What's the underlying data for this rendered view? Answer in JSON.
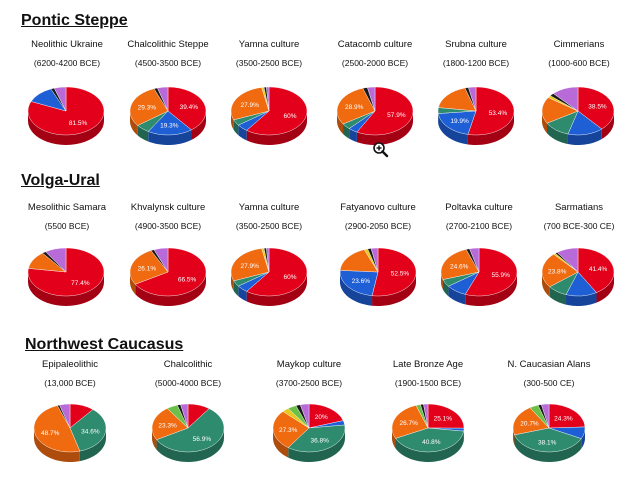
{
  "colors": {
    "red": "#e2001a",
    "blue": "#1f5fd6",
    "green": "#2e8b6e",
    "orange": "#f06a10",
    "violet": "#b86ad8",
    "yellow": "#e8c81a",
    "black": "#1a1a1a",
    "lightgreen": "#6cc04a"
  },
  "sections": [
    {
      "title": "Pontic Steppe",
      "charts": [
        {
          "name": "Neolithic Ukraine",
          "date": "(6200-4200 BCE)"
        },
        {
          "name": "Chalcolithic Steppe",
          "date": "(4500-3500 BCE)"
        },
        {
          "name": "Yamna culture",
          "date": "(3500-2500 BCE)"
        },
        {
          "name": "Catacomb culture",
          "date": "(2500-2000 BCE)"
        },
        {
          "name": "Srubna culture",
          "date": "(1800-1200 BCE)"
        },
        {
          "name": "Cimmerians",
          "date": "(1000-600 BCE)"
        }
      ]
    },
    {
      "title": "Volga-Ural",
      "charts": [
        {
          "name": "Mesolithic Samara",
          "date": "(5500 BCE)"
        },
        {
          "name": "Khvalynsk culture",
          "date": "(4900-3500 BCE)"
        },
        {
          "name": "Yamna culture",
          "date": "(3500-2500 BCE)"
        },
        {
          "name": "Fatyanovo culture",
          "date": "(2900-2050 BCE)"
        },
        {
          "name": "Poltavka culture",
          "date": "(2700-2100 BCE)"
        },
        {
          "name": "Sarmatians",
          "date": "(700 BCE-300 CE)"
        }
      ]
    },
    {
      "title": "Northwest Caucasus",
      "charts": [
        {
          "name": "Epipaleolithic",
          "date": "(13,000 BCE)"
        },
        {
          "name": "Chalcolithic",
          "date": "(5000-4000 BCE)"
        },
        {
          "name": "Maykop culture",
          "date": "(3700-2500 BCE)"
        },
        {
          "name": "Late Bronze Age",
          "date": "(1900-1500 BCE)"
        },
        {
          "name": "N. Caucasian Alans",
          "date": "(300-500 CE)"
        }
      ]
    }
  ],
  "chart_data": [
    {
      "type": "pie",
      "title": "Neolithic Ukraine",
      "slices": [
        {
          "color": "red",
          "value": 81.5,
          "label": "81.5%"
        },
        {
          "color": "blue",
          "value": 12.0
        },
        {
          "color": "black",
          "value": 1.5
        },
        {
          "color": "violet",
          "value": 5.0
        }
      ]
    },
    {
      "type": "pie",
      "title": "Chalcolithic Steppe",
      "slices": [
        {
          "color": "red",
          "value": 39.4,
          "label": "39.4%"
        },
        {
          "color": "blue",
          "value": 19.3,
          "label": "19.3%"
        },
        {
          "color": "green",
          "value": 6.0
        },
        {
          "color": "orange",
          "value": 29.3,
          "label": "29.3%"
        },
        {
          "color": "black",
          "value": 1.5
        },
        {
          "color": "violet",
          "value": 4.5
        }
      ]
    },
    {
      "type": "pie",
      "title": "Yamna culture",
      "slices": [
        {
          "color": "red",
          "value": 60.0,
          "label": "60%"
        },
        {
          "color": "blue",
          "value": 5.0
        },
        {
          "color": "green",
          "value": 4.0
        },
        {
          "color": "orange",
          "value": 27.9,
          "label": "27.9%"
        },
        {
          "color": "yellow",
          "value": 1.0
        },
        {
          "color": "black",
          "value": 1.0
        },
        {
          "color": "violet",
          "value": 1.1
        }
      ]
    },
    {
      "type": "pie",
      "title": "Catacomb culture",
      "slices": [
        {
          "color": "red",
          "value": 57.9,
          "label": "57.9%"
        },
        {
          "color": "blue",
          "value": 4.0
        },
        {
          "color": "green",
          "value": 4.0
        },
        {
          "color": "orange",
          "value": 28.9,
          "label": "28.9%"
        },
        {
          "color": "black",
          "value": 2.0
        },
        {
          "color": "violet",
          "value": 3.2
        }
      ]
    },
    {
      "type": "pie",
      "title": "Srubna culture",
      "slices": [
        {
          "color": "red",
          "value": 53.4,
          "label": "53.4%"
        },
        {
          "color": "blue",
          "value": 19.9,
          "label": "19.9%"
        },
        {
          "color": "green",
          "value": 4.0
        },
        {
          "color": "orange",
          "value": 18.0
        },
        {
          "color": "black",
          "value": 1.5
        },
        {
          "color": "violet",
          "value": 3.2
        }
      ]
    },
    {
      "type": "pie",
      "title": "Cimmerians",
      "slices": [
        {
          "color": "red",
          "value": 38.5,
          "label": "38.5%"
        },
        {
          "color": "blue",
          "value": 16.0
        },
        {
          "color": "green",
          "value": 12.0
        },
        {
          "color": "orange",
          "value": 18.0
        },
        {
          "color": "yellow",
          "value": 1.5
        },
        {
          "color": "black",
          "value": 2.0
        },
        {
          "color": "violet",
          "value": 12.0
        }
      ]
    },
    {
      "type": "pie",
      "title": "Mesolithic Samara",
      "slices": [
        {
          "color": "red",
          "value": 77.4,
          "label": "77.4%"
        },
        {
          "color": "orange",
          "value": 12.0
        },
        {
          "color": "black",
          "value": 1.6
        },
        {
          "color": "violet",
          "value": 9.0
        }
      ]
    },
    {
      "type": "pie",
      "title": "Khvalynsk culture",
      "slices": [
        {
          "color": "red",
          "value": 66.5,
          "label": "66.5%"
        },
        {
          "color": "orange",
          "value": 26.1,
          "label": "26.1%"
        },
        {
          "color": "black",
          "value": 1.4
        },
        {
          "color": "violet",
          "value": 6.0
        }
      ]
    },
    {
      "type": "pie",
      "title": "Yamna culture",
      "slices": [
        {
          "color": "red",
          "value": 60.0,
          "label": "60%"
        },
        {
          "color": "blue",
          "value": 5.0
        },
        {
          "color": "green",
          "value": 4.0
        },
        {
          "color": "orange",
          "value": 27.9,
          "label": "27.9%"
        },
        {
          "color": "yellow",
          "value": 1.0
        },
        {
          "color": "black",
          "value": 1.0
        },
        {
          "color": "violet",
          "value": 1.1
        }
      ]
    },
    {
      "type": "pie",
      "title": "Fatyanovo culture",
      "slices": [
        {
          "color": "red",
          "value": 52.5,
          "label": "52.5%"
        },
        {
          "color": "blue",
          "value": 23.6,
          "label": "23.6%"
        },
        {
          "color": "orange",
          "value": 18.0
        },
        {
          "color": "yellow",
          "value": 1.5
        },
        {
          "color": "black",
          "value": 1.5
        },
        {
          "color": "violet",
          "value": 2.9
        }
      ]
    },
    {
      "type": "pie",
      "title": "Poltavka culture",
      "slices": [
        {
          "color": "red",
          "value": 55.9,
          "label": "55.9%"
        },
        {
          "color": "blue",
          "value": 9.0
        },
        {
          "color": "green",
          "value": 5.0
        },
        {
          "color": "orange",
          "value": 24.6,
          "label": "24.6%"
        },
        {
          "color": "black",
          "value": 1.5
        },
        {
          "color": "violet",
          "value": 4.0
        }
      ]
    },
    {
      "type": "pie",
      "title": "Sarmatians",
      "slices": [
        {
          "color": "red",
          "value": 41.4,
          "label": "41.4%"
        },
        {
          "color": "blue",
          "value": 14.0
        },
        {
          "color": "green",
          "value": 9.0
        },
        {
          "color": "orange",
          "value": 23.8,
          "label": "23.8%"
        },
        {
          "color": "yellow",
          "value": 1.0
        },
        {
          "color": "black",
          "value": 1.0
        },
        {
          "color": "violet",
          "value": 9.8
        }
      ]
    },
    {
      "type": "pie",
      "title": "Epipaleolithic",
      "slices": [
        {
          "color": "red",
          "value": 11.0
        },
        {
          "color": "green",
          "value": 34.6,
          "label": "34.6%"
        },
        {
          "color": "orange",
          "value": 48.7,
          "label": "48.7%"
        },
        {
          "color": "black",
          "value": 1.0
        },
        {
          "color": "violet",
          "value": 4.7
        }
      ]
    },
    {
      "type": "pie",
      "title": "Chalcolithic",
      "slices": [
        {
          "color": "red",
          "value": 10.0
        },
        {
          "color": "green",
          "value": 56.9,
          "label": "56.9%"
        },
        {
          "color": "orange",
          "value": 23.3,
          "label": "23.3%"
        },
        {
          "color": "lightgreen",
          "value": 5.0
        },
        {
          "color": "black",
          "value": 1.5
        },
        {
          "color": "violet",
          "value": 3.3
        }
      ]
    },
    {
      "type": "pie",
      "title": "Maykop culture",
      "slices": [
        {
          "color": "red",
          "value": 20.0,
          "label": "20%"
        },
        {
          "color": "blue",
          "value": 3.0
        },
        {
          "color": "green",
          "value": 36.8,
          "label": "36.8%"
        },
        {
          "color": "orange",
          "value": 27.3,
          "label": "27.3%"
        },
        {
          "color": "yellow",
          "value": 3.0
        },
        {
          "color": "lightgreen",
          "value": 4.0
        },
        {
          "color": "black",
          "value": 2.0
        },
        {
          "color": "violet",
          "value": 3.9
        }
      ]
    },
    {
      "type": "pie",
      "title": "Late Bronze Age",
      "slices": [
        {
          "color": "red",
          "value": 25.1,
          "label": "25.1%"
        },
        {
          "color": "blue",
          "value": 2.0
        },
        {
          "color": "green",
          "value": 40.8,
          "label": "40.8%"
        },
        {
          "color": "orange",
          "value": 26.7,
          "label": "26.7%"
        },
        {
          "color": "lightgreen",
          "value": 2.0
        },
        {
          "color": "black",
          "value": 1.4
        },
        {
          "color": "violet",
          "value": 2.0
        }
      ]
    },
    {
      "type": "pie",
      "title": "N. Caucasian Alans",
      "slices": [
        {
          "color": "red",
          "value": 24.3,
          "label": "24.3%"
        },
        {
          "color": "blue",
          "value": 8.0
        },
        {
          "color": "green",
          "value": 38.1,
          "label": "38.1%"
        },
        {
          "color": "orange",
          "value": 20.7,
          "label": "20.7%"
        },
        {
          "color": "lightgreen",
          "value": 4.0
        },
        {
          "color": "black",
          "value": 1.5
        },
        {
          "color": "violet",
          "value": 3.4
        }
      ]
    }
  ],
  "cursor_icon": "zoom-in-icon"
}
